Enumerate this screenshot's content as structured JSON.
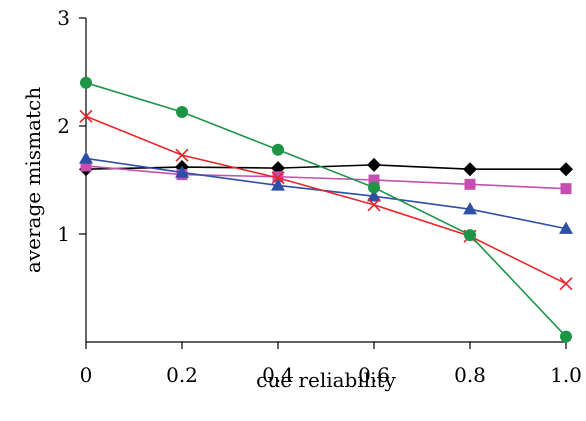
{
  "chart_data": {
    "type": "line",
    "title": "",
    "xlabel": "cue reliability",
    "ylabel": "average mismatch",
    "xlim": [
      0,
      1.0
    ],
    "ylim": [
      0,
      3
    ],
    "x_ticks": [
      0,
      0.2,
      0.4,
      0.6,
      0.8,
      1.0
    ],
    "x_tick_labels": [
      "0",
      "0.2",
      "0.4",
      "0.6",
      "0.8",
      "1.0"
    ],
    "y_ticks": [
      1,
      2,
      3
    ],
    "y_tick_labels": [
      "1",
      "2",
      "3"
    ],
    "grid": false,
    "legend": "none",
    "x": [
      0,
      0.2,
      0.4,
      0.6,
      0.8,
      1.0
    ],
    "series": [
      {
        "color": "#000000",
        "marker": "diamond",
        "values": [
          1.6,
          1.62,
          1.61,
          1.64,
          1.6,
          1.6
        ]
      },
      {
        "color": "#c44fb0",
        "marker": "square",
        "values": [
          1.63,
          1.55,
          1.53,
          1.5,
          1.46,
          1.42
        ]
      },
      {
        "color": "#2d4fa6",
        "marker": "triangle",
        "values": [
          1.7,
          1.57,
          1.45,
          1.35,
          1.23,
          1.05
        ]
      },
      {
        "color": "#e8262a",
        "marker": "cross",
        "values": [
          2.09,
          1.73,
          1.52,
          1.27,
          0.98,
          0.54
        ]
      },
      {
        "color": "#1e9447",
        "marker": "circle",
        "values": [
          2.4,
          2.13,
          1.78,
          1.43,
          0.99,
          0.05
        ]
      }
    ]
  }
}
